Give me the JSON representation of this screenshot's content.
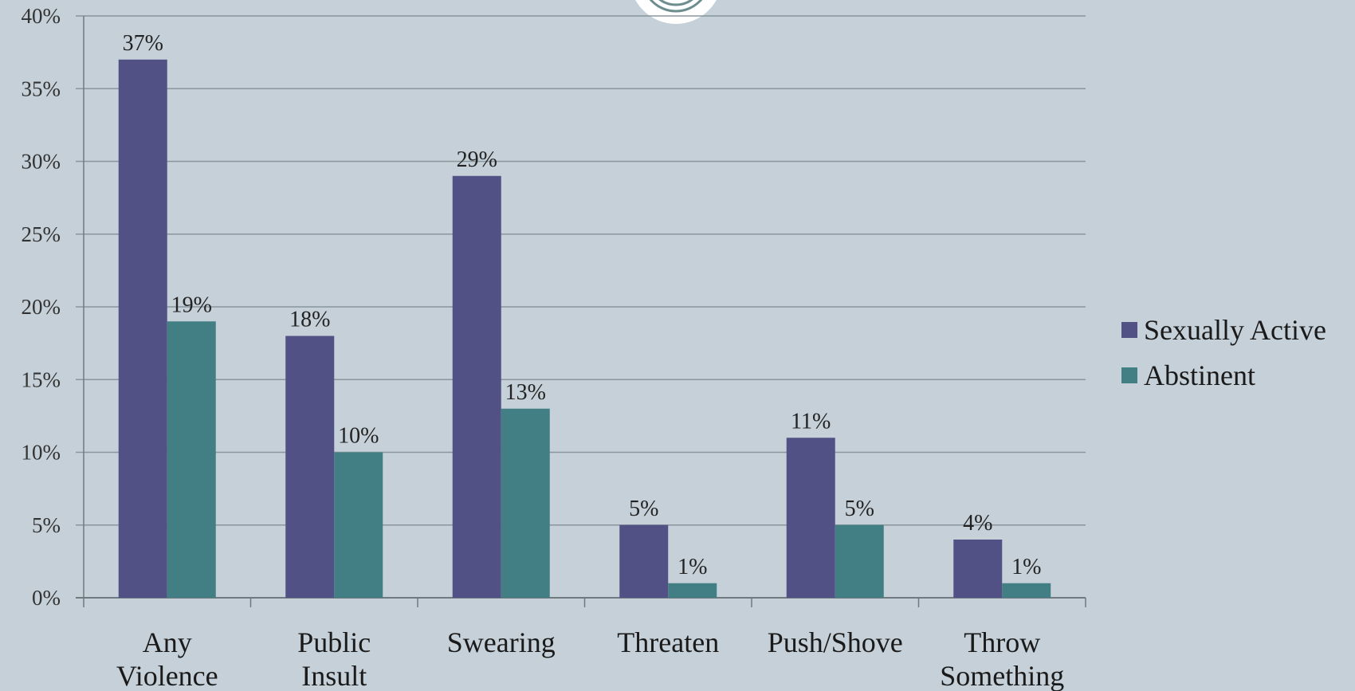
{
  "colors": {
    "background": "#c5d0d8",
    "sexually_active": "#515186",
    "abstinent": "#417f84",
    "gridline": "#8a959c",
    "axis": "#6f7a80"
  },
  "logo": {
    "icon": "circle-logo-icon"
  },
  "chart_data": {
    "type": "bar",
    "title": "",
    "xlabel": "",
    "ylabel": "",
    "ylim": [
      0,
      40
    ],
    "ytick_step": 5,
    "ytick_suffix": "%",
    "grid": true,
    "legend_position": "right",
    "categories": [
      [
        "Any",
        "Violence"
      ],
      [
        "Public",
        "Insult"
      ],
      [
        "Swearing"
      ],
      [
        "Threaten"
      ],
      [
        "Push/Shove"
      ],
      [
        "Throw",
        "Something"
      ]
    ],
    "series": [
      {
        "name": "Sexually Active",
        "values": [
          37,
          18,
          29,
          5,
          11,
          4
        ],
        "color": "#515186"
      },
      {
        "name": "Abstinent",
        "values": [
          19,
          10,
          13,
          1,
          5,
          1
        ],
        "color": "#417f84"
      }
    ]
  }
}
